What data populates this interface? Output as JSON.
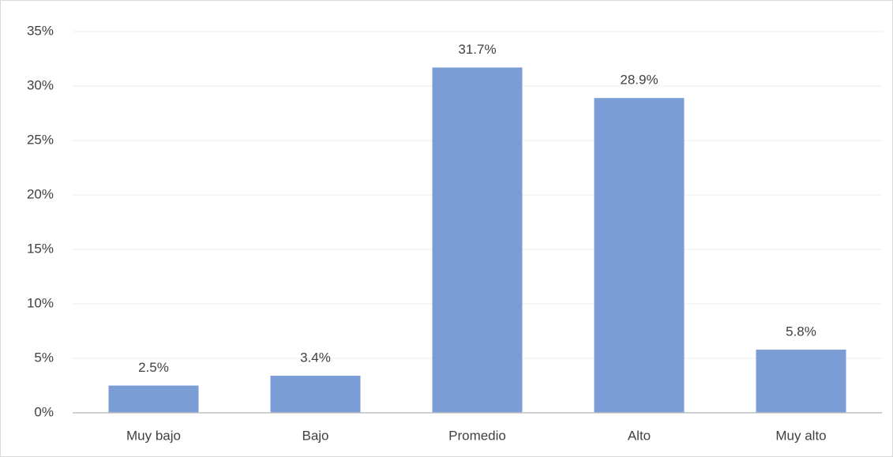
{
  "chart_data": {
    "type": "bar",
    "categories": [
      "Muy bajo",
      "Bajo",
      "Promedio",
      "Alto",
      "Muy alto"
    ],
    "values": [
      2.5,
      3.4,
      31.7,
      28.9,
      5.8
    ],
    "value_labels": [
      "2.5%",
      "3.4%",
      "31.7%",
      "28.9%",
      "5.8%"
    ],
    "color": "#7a9dd6",
    "ylim": [
      0,
      35
    ],
    "yticks": [
      {
        "value": 0,
        "label": "0%"
      },
      {
        "value": 5,
        "label": "5%"
      },
      {
        "value": 10,
        "label": "10%"
      },
      {
        "value": 15,
        "label": "15%"
      },
      {
        "value": 20,
        "label": "20%"
      },
      {
        "value": 25,
        "label": "25%"
      },
      {
        "value": 30,
        "label": "30%"
      },
      {
        "value": 35,
        "label": "35%"
      }
    ],
    "grid": true
  }
}
